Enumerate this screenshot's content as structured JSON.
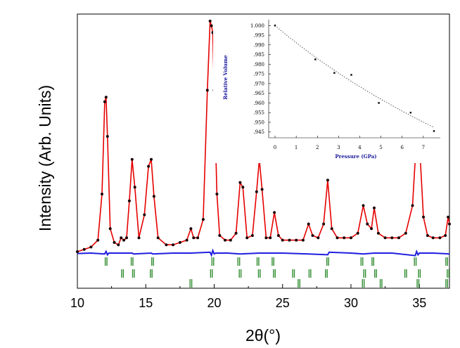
{
  "chart_data": [
    {
      "type": "line",
      "title": "",
      "xlabel": "2θ(°)",
      "ylabel": "Intensity (Arb. Units)",
      "xlim": [
        10,
        37.2
      ],
      "ylim": [
        -0.5,
        1.05
      ],
      "x_ticks": [
        10,
        15,
        20,
        25,
        30,
        35
      ],
      "y_ticks_shown": false,
      "series": [
        {
          "name": "observed",
          "style": "dots",
          "color": "#1a0000",
          "x": [
            10.0,
            10.5,
            11.0,
            11.5,
            11.8,
            12.0,
            12.1,
            12.2,
            12.4,
            12.7,
            13.0,
            13.2,
            13.4,
            13.6,
            13.8,
            14.0,
            14.2,
            14.5,
            14.9,
            15.2,
            15.4,
            15.6,
            15.9,
            16.5,
            17.0,
            17.5,
            18.0,
            18.3,
            18.5,
            18.8,
            19.2,
            19.5,
            19.7,
            19.8,
            19.9,
            20.0,
            20.2,
            20.4,
            20.8,
            21.2,
            21.6,
            21.9,
            22.1,
            22.4,
            22.8,
            23.1,
            23.3,
            23.5,
            23.8,
            24.1,
            24.4,
            24.7,
            25.0,
            25.5,
            26.0,
            26.5,
            26.9,
            27.2,
            27.6,
            28.0,
            28.3,
            28.6,
            29.0,
            29.5,
            30.0,
            30.5,
            30.9,
            31.2,
            31.5,
            31.7,
            32.0,
            32.5,
            33.0,
            33.5,
            34.0,
            34.5,
            34.8,
            35.0,
            35.3,
            35.6,
            36.0,
            36.5,
            36.9,
            37.1,
            37.2
          ],
          "y": [
            0.0,
            0.01,
            0.02,
            0.05,
            0.25,
            0.65,
            0.67,
            0.5,
            0.1,
            0.04,
            0.03,
            0.06,
            0.05,
            0.06,
            0.22,
            0.4,
            0.28,
            0.06,
            0.16,
            0.37,
            0.4,
            0.24,
            0.06,
            0.03,
            0.03,
            0.04,
            0.05,
            0.1,
            0.06,
            0.06,
            0.14,
            0.7,
            1.0,
            0.98,
            0.95,
            0.7,
            0.25,
            0.07,
            0.05,
            0.05,
            0.08,
            0.3,
            0.28,
            0.06,
            0.07,
            0.26,
            0.4,
            0.27,
            0.06,
            0.06,
            0.17,
            0.07,
            0.05,
            0.05,
            0.05,
            0.05,
            0.12,
            0.07,
            0.06,
            0.12,
            0.31,
            0.1,
            0.06,
            0.06,
            0.06,
            0.08,
            0.2,
            0.12,
            0.1,
            0.19,
            0.08,
            0.06,
            0.06,
            0.06,
            0.08,
            0.2,
            0.5,
            0.48,
            0.15,
            0.07,
            0.06,
            0.06,
            0.07,
            0.15,
            0.12
          ]
        },
        {
          "name": "calculated",
          "style": "line",
          "color": "#e60000",
          "x": [
            10.0,
            10.5,
            11.0,
            11.5,
            11.8,
            12.0,
            12.1,
            12.2,
            12.4,
            12.7,
            13.0,
            13.2,
            13.4,
            13.6,
            13.8,
            14.0,
            14.2,
            14.5,
            14.9,
            15.2,
            15.4,
            15.6,
            15.9,
            16.5,
            17.0,
            17.5,
            18.0,
            18.3,
            18.5,
            18.8,
            19.2,
            19.5,
            19.7,
            19.8,
            19.9,
            20.0,
            20.2,
            20.4,
            20.8,
            21.2,
            21.6,
            21.9,
            22.1,
            22.4,
            22.8,
            23.1,
            23.3,
            23.5,
            23.8,
            24.1,
            24.4,
            24.7,
            25.0,
            25.5,
            26.0,
            26.5,
            26.9,
            27.2,
            27.6,
            28.0,
            28.3,
            28.6,
            29.0,
            29.5,
            30.0,
            30.5,
            30.9,
            31.2,
            31.5,
            31.7,
            32.0,
            32.5,
            33.0,
            33.5,
            34.0,
            34.5,
            34.8,
            35.0,
            35.3,
            35.6,
            36.0,
            36.5,
            36.9,
            37.1,
            37.2
          ],
          "y": [
            0.0,
            0.01,
            0.02,
            0.05,
            0.25,
            0.65,
            0.67,
            0.5,
            0.1,
            0.04,
            0.03,
            0.06,
            0.05,
            0.06,
            0.22,
            0.4,
            0.28,
            0.06,
            0.16,
            0.37,
            0.4,
            0.24,
            0.06,
            0.03,
            0.03,
            0.04,
            0.05,
            0.1,
            0.06,
            0.06,
            0.14,
            0.7,
            1.0,
            0.98,
            0.95,
            0.7,
            0.25,
            0.07,
            0.05,
            0.05,
            0.08,
            0.3,
            0.28,
            0.06,
            0.07,
            0.26,
            0.4,
            0.27,
            0.06,
            0.06,
            0.17,
            0.07,
            0.05,
            0.05,
            0.05,
            0.05,
            0.12,
            0.07,
            0.06,
            0.12,
            0.31,
            0.1,
            0.06,
            0.06,
            0.06,
            0.08,
            0.2,
            0.12,
            0.1,
            0.19,
            0.08,
            0.06,
            0.06,
            0.06,
            0.08,
            0.2,
            0.5,
            0.48,
            0.15,
            0.07,
            0.06,
            0.06,
            0.07,
            0.15,
            0.12
          ]
        },
        {
          "name": "difference",
          "style": "line",
          "color": "#1f1fe0",
          "baseline": -0.02,
          "x": [
            10.0,
            11.0,
            12.0,
            12.1,
            12.2,
            12.3,
            13.0,
            14.0,
            14.1,
            15.4,
            15.5,
            17.0,
            18.3,
            19.7,
            19.8,
            19.9,
            20.0,
            20.1,
            21.0,
            21.9,
            23.3,
            25.0,
            26.9,
            28.3,
            28.4,
            30.0,
            30.9,
            31.7,
            33.0,
            34.7,
            34.8,
            34.9,
            35.0,
            36.0,
            37.2
          ],
          "y": [
            -0.025,
            -0.02,
            -0.03,
            0.0,
            -0.04,
            -0.02,
            -0.02,
            -0.02,
            -0.03,
            -0.02,
            -0.03,
            -0.02,
            -0.02,
            -0.01,
            -0.045,
            0.01,
            -0.03,
            -0.02,
            -0.02,
            -0.03,
            -0.02,
            -0.02,
            -0.03,
            -0.04,
            -0.01,
            -0.02,
            -0.03,
            -0.02,
            -0.02,
            -0.05,
            0.0,
            -0.04,
            -0.02,
            -0.02,
            -0.03
          ]
        }
      ],
      "reflection_markers": {
        "color": "#2e8b2e",
        "rows": [
          [
            12.1,
            14.0,
            15.5,
            19.9,
            21.8,
            23.2,
            24.3,
            28.3,
            30.8,
            31.6,
            34.7,
            37.0
          ],
          [
            13.3,
            14.1,
            15.4,
            19.8,
            21.9,
            23.3,
            24.4,
            25.8,
            27.0,
            28.2,
            31.0,
            31.8,
            34.0,
            35.0,
            37.1
          ],
          [
            18.3,
            26.2,
            30.9,
            32.2,
            34.9,
            37.0
          ]
        ]
      }
    },
    {
      "type": "scatter",
      "title": "",
      "xlabel": "Pressure (GPa)",
      "ylabel": "Relative Volume",
      "xlim": [
        -0.3,
        7.8
      ],
      "ylim": [
        0.942,
        1.003
      ],
      "x_ticks": [
        0,
        1,
        2,
        3,
        4,
        5,
        6,
        7
      ],
      "y_ticks": [
        1.0,
        0.995,
        0.99,
        0.985,
        0.98,
        0.975,
        0.97,
        0.965,
        0.96,
        0.955,
        0.95,
        0.945
      ],
      "y_tick_labels": [
        "1.000",
        ".995",
        ".990",
        ".985",
        ".980",
        ".975",
        ".970",
        ".965",
        ".960",
        ".955",
        ".950",
        ".945"
      ],
      "x": [
        0.0,
        1.9,
        2.8,
        3.6,
        4.9,
        6.4,
        7.5
      ],
      "y": [
        1.0,
        0.9825,
        0.9755,
        0.9745,
        0.96,
        0.955,
        0.9455
      ],
      "fit": {
        "style": "dotted",
        "x": [
          0.0,
          0.5,
          1.0,
          1.5,
          2.0,
          2.5,
          3.0,
          3.5,
          4.0,
          4.5,
          5.0,
          5.5,
          6.0,
          6.5,
          7.0,
          7.5
        ],
        "y": [
          1.0,
          0.9954,
          0.9911,
          0.9869,
          0.9829,
          0.9791,
          0.9754,
          0.9718,
          0.9684,
          0.9651,
          0.9619,
          0.9588,
          0.9558,
          0.9529,
          0.9501,
          0.9474
        ]
      }
    }
  ]
}
